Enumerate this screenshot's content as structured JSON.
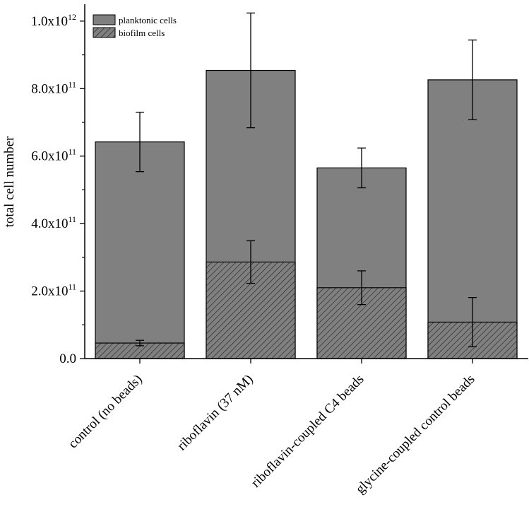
{
  "chart_data": {
    "type": "bar",
    "stacked": true,
    "title": "",
    "xlabel": "",
    "ylabel": "total cell number",
    "ylim": [
      0,
      1050000000000
    ],
    "yticks": [
      {
        "value": 0,
        "mantissa": "0.0",
        "exp": ""
      },
      {
        "value": 200000000000,
        "mantissa": "2.0x10",
        "exp": "11"
      },
      {
        "value": 400000000000,
        "mantissa": "4.0x10",
        "exp": "11"
      },
      {
        "value": 600000000000,
        "mantissa": "6.0x10",
        "exp": "11"
      },
      {
        "value": 800000000000,
        "mantissa": "8.0x10",
        "exp": "11"
      },
      {
        "value": 1000000000000,
        "mantissa": "1.0x10",
        "exp": "12"
      }
    ],
    "categories": [
      "control (no beads)",
      "riboflavin (37 nM)",
      "riboflavin-coupled C4 beads",
      "glycine-coupled control beads"
    ],
    "series": [
      {
        "name": "planktonic cells",
        "fill": "solid",
        "color": "#808080",
        "totals": [
          642000000000,
          854000000000,
          565000000000,
          826000000000
        ],
        "error": [
          88000000000,
          170000000000,
          59000000000,
          118000000000
        ]
      },
      {
        "name": "biofilm cells",
        "fill": "hatched",
        "color": "#808080",
        "values": [
          46000000000,
          286000000000,
          210000000000,
          108000000000
        ],
        "error": [
          8000000000,
          63000000000,
          50000000000,
          73000000000
        ]
      }
    ],
    "legend": {
      "position": "top-left",
      "entries": [
        "planktonic cells",
        "biofilm cells"
      ]
    }
  }
}
